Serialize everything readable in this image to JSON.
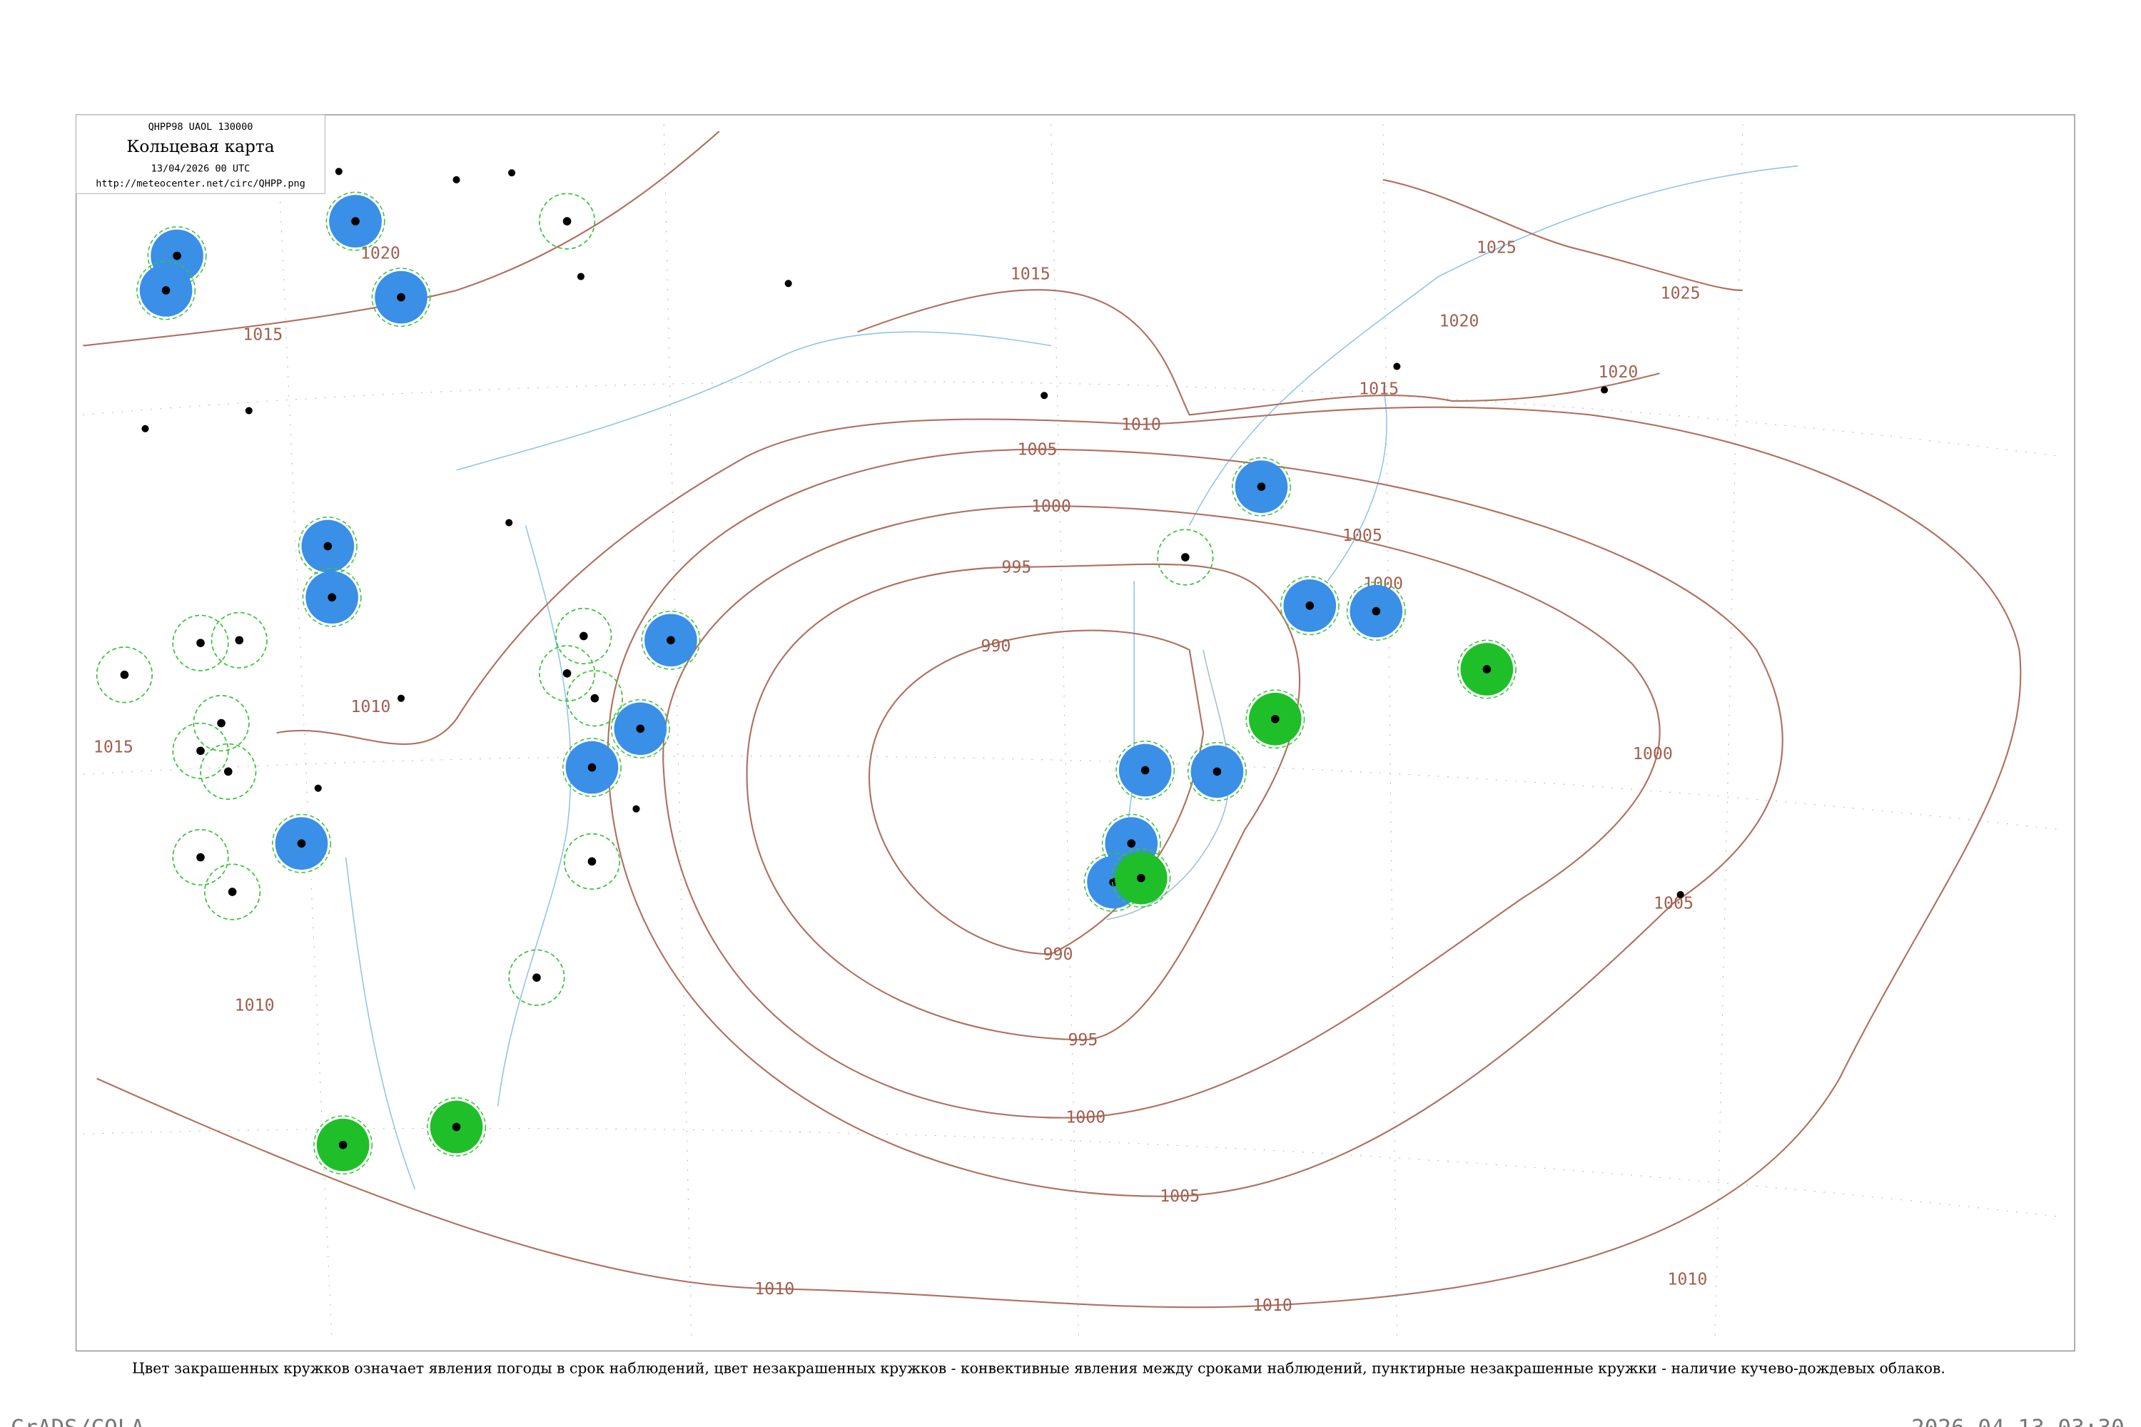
{
  "header": {
    "code": "QHPP98  UAOL  130000",
    "title": "Кольцевая карта",
    "time": "13/04/2026 00 UTC",
    "url": "http://meteocenter.net/circ/QHPP.png"
  },
  "isobar_labels": [
    "990",
    "990",
    "995",
    "995",
    "1000",
    "1000",
    "1000",
    "1000",
    "1005",
    "1005",
    "1005",
    "1005",
    "1010",
    "1010",
    "1010",
    "1010",
    "1010",
    "1010",
    "1015",
    "1015",
    "1015",
    "1015",
    "1020",
    "1020",
    "1020",
    "1025",
    "1025"
  ],
  "caption": "Цвет закрашенных кружков означает явления погоды в срок наблюдений, цвет незакрашенных кружков - конвективные явления между сроками наблюдений, пунктирные незакрашенные кружки - наличие кучево-дождевых облаков.",
  "footer": {
    "left": "GrADS/COLA",
    "right": "2026-04-13-03:30"
  }
}
